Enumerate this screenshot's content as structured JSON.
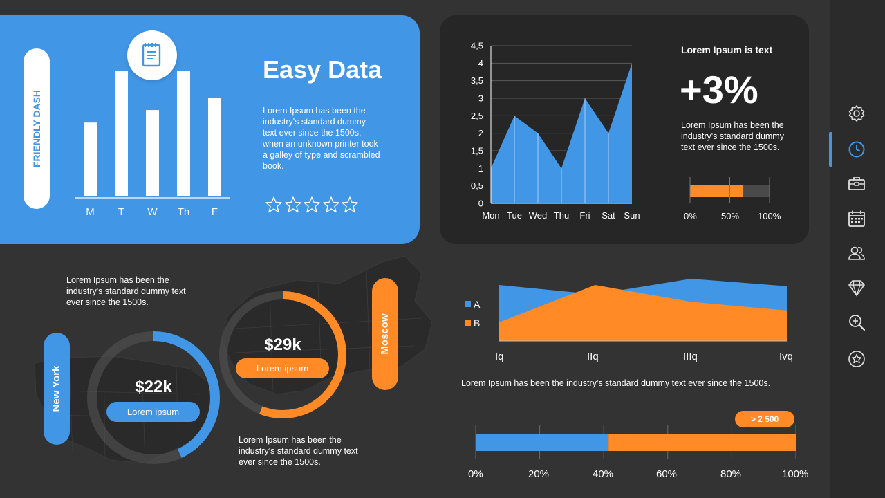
{
  "colors": {
    "blue": "#4196e6",
    "orange": "#ff8a26",
    "background": "#333333",
    "card": "#262626"
  },
  "hero": {
    "side_label": "FRIENDLY DASH",
    "title": "Easy Data",
    "description": "Lorem Ipsum has been the industry's standard dummy text ever since the 1500s, when an unknown printer took a galley of type and scrambled book.",
    "rating_stars": 5,
    "rating_filled": 0,
    "icon": "notepad-icon"
  },
  "nav": {
    "icons": [
      "gear-icon",
      "clock-icon",
      "toolbox-icon",
      "calendar-icon",
      "users-icon",
      "diamond-icon",
      "zoom-in-icon",
      "star-icon"
    ],
    "active_index": 1
  },
  "stats": {
    "heading": "Lorem Ipsum is text",
    "value": "+3%",
    "description": "Lorem Ipsum has been the industry's standard dummy text ever since the 1500s.",
    "progress": 0.67,
    "progress_ticks": [
      "0%",
      "50%",
      "100%"
    ]
  },
  "cities": {
    "new_york": {
      "label": "New York",
      "value": "$22k",
      "button": "Lorem ipsum",
      "ring_fill": 0.43
    },
    "moscow": {
      "label": "Moscow",
      "value": "$29k",
      "button": "Lorem ipsum",
      "ring_fill": 0.56
    },
    "text_top": "Lorem Ipsum has been the industry's standard dummy text ever since the 1500s.",
    "text_bottom": "Lorem Ipsum has been the industry's standard dummy text ever since the 1500s."
  },
  "area_caption": "Lorem Ipsum has been the industry's standard dummy text ever since the 1500s.",
  "bottom_bar": {
    "badge": "> 2 500",
    "split": 0.415,
    "ticks": [
      "0%",
      "20%",
      "40%",
      "60%",
      "80%",
      "100%"
    ]
  },
  "chart_data": [
    {
      "type": "bar",
      "categories": [
        "M",
        "T",
        "W",
        "Th",
        "F"
      ],
      "values": [
        0.59,
        1.0,
        0.69,
        1.0,
        0.79
      ],
      "ylim": [
        0,
        1
      ]
    },
    {
      "type": "area",
      "categories": [
        "Mon",
        "Tue",
        "Wed",
        "Thu",
        "Fri",
        "Sat",
        "Sun"
      ],
      "values": [
        1,
        2.5,
        2,
        1,
        3,
        2,
        4
      ],
      "yticks": [
        "0",
        "0,5",
        "1",
        "1,5",
        "2",
        "2,5",
        "3",
        "3,5",
        "4",
        "4,5"
      ],
      "ylim": [
        0,
        4.5
      ],
      "grid": true
    },
    {
      "type": "area",
      "categories": [
        "Iq",
        "IIq",
        "IIIq",
        "Ivq"
      ],
      "series": [
        {
          "name": "A",
          "values": [
            0.9,
            0.75,
            1.0,
            0.88
          ]
        },
        {
          "name": "B",
          "values": [
            0.3,
            0.9,
            0.63,
            0.49
          ]
        }
      ],
      "ylim": [
        0,
        1
      ],
      "legend": "left"
    }
  ]
}
